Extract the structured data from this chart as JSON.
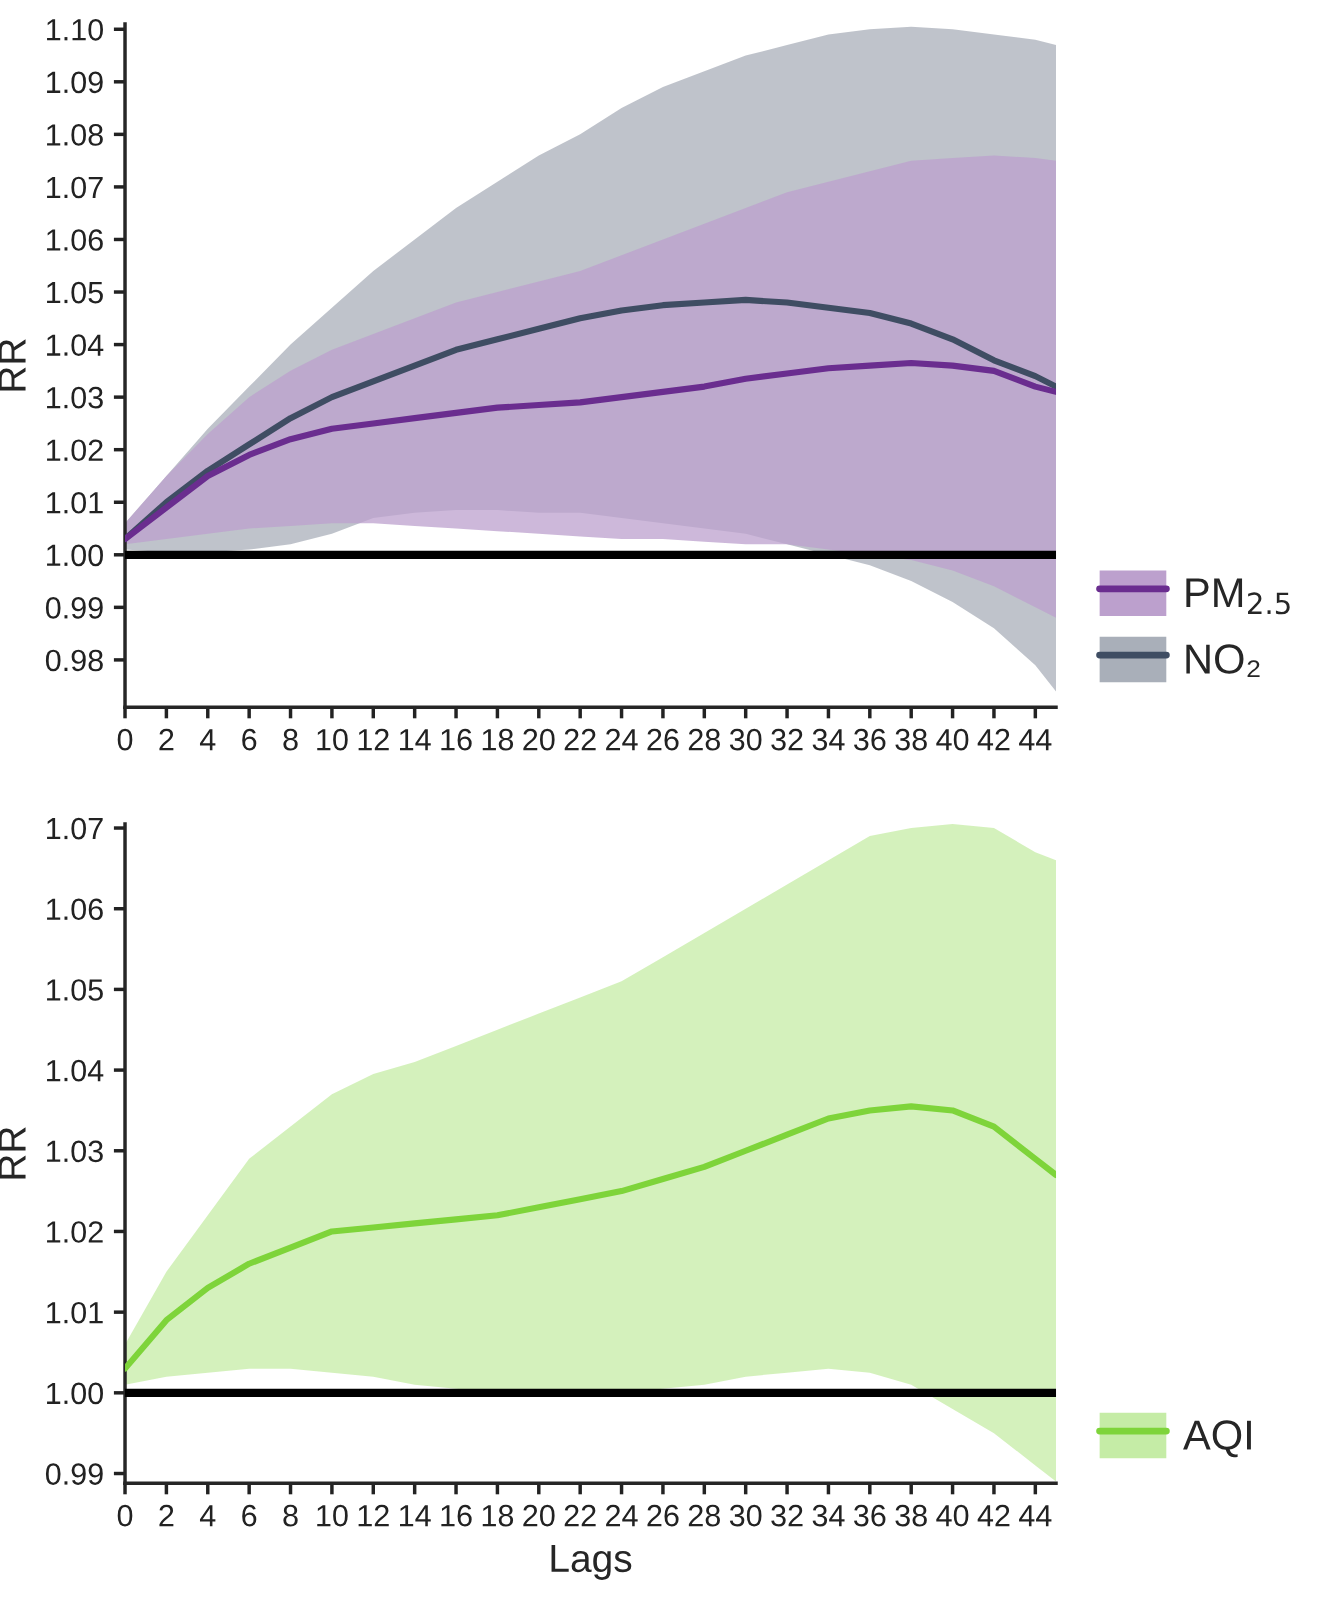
{
  "chart_data": [
    {
      "type": "line",
      "ylabel": "RR",
      "x": [
        0,
        2,
        4,
        6,
        8,
        10,
        12,
        14,
        16,
        18,
        20,
        22,
        24,
        26,
        28,
        30,
        32,
        34,
        36,
        38,
        40,
        42,
        44,
        45
      ],
      "xlim": [
        0,
        45
      ],
      "xticks": [
        0,
        2,
        4,
        6,
        8,
        10,
        12,
        14,
        16,
        18,
        20,
        22,
        24,
        26,
        28,
        30,
        32,
        34,
        36,
        38,
        40,
        42,
        44
      ],
      "ylim": [
        0.971,
        1.101
      ],
      "yticks": [
        {
          "value": 0.98,
          "label": "0.98"
        },
        {
          "value": 0.99,
          "label": "0.99"
        },
        {
          "value": 1.0,
          "label": "1.00"
        },
        {
          "value": 1.01,
          "label": "1.01"
        },
        {
          "value": 1.02,
          "label": "1.02"
        },
        {
          "value": 1.03,
          "label": "1.03"
        },
        {
          "value": 1.04,
          "label": "1.04"
        },
        {
          "value": 1.05,
          "label": "1.05"
        },
        {
          "value": 1.06,
          "label": "1.06"
        },
        {
          "value": 1.07,
          "label": "1.07"
        },
        {
          "value": 1.08,
          "label": "1.08"
        },
        {
          "value": 1.09,
          "label": "1.09"
        },
        {
          "value": 1.1,
          "label": "1.10"
        }
      ],
      "grid": false,
      "legend": "right",
      "ref_lines": [
        {
          "axis": "y",
          "value": 1.0,
          "color": "#000000"
        }
      ],
      "series": [
        {
          "name": "NO₂",
          "color": "#3f4d63",
          "values": [
            1.003,
            1.01,
            1.016,
            1.021,
            1.026,
            1.03,
            1.033,
            1.036,
            1.039,
            1.041,
            1.043,
            1.045,
            1.0465,
            1.0475,
            1.048,
            1.0485,
            1.048,
            1.047,
            1.046,
            1.044,
            1.041,
            1.037,
            1.034,
            1.032
          ],
          "upper": [
            1.006,
            1.015,
            1.024,
            1.032,
            1.04,
            1.047,
            1.054,
            1.06,
            1.066,
            1.071,
            1.076,
            1.08,
            1.085,
            1.089,
            1.092,
            1.095,
            1.097,
            1.099,
            1.1,
            1.1005,
            1.1,
            1.099,
            1.098,
            1.097
          ],
          "lower": [
            1.001,
            1.0005,
            1.0005,
            1.001,
            1.002,
            1.004,
            1.007,
            1.008,
            1.0085,
            1.0085,
            1.008,
            1.008,
            1.007,
            1.006,
            1.005,
            1.004,
            1.002,
            1.0,
            0.998,
            0.995,
            0.991,
            0.986,
            0.979,
            0.974
          ]
        },
        {
          "name": "PM$_{2.5}$",
          "color": "#6a2d8f",
          "values": [
            1.003,
            1.009,
            1.015,
            1.019,
            1.022,
            1.024,
            1.025,
            1.026,
            1.027,
            1.028,
            1.0285,
            1.029,
            1.03,
            1.031,
            1.032,
            1.0335,
            1.0345,
            1.0355,
            1.036,
            1.0365,
            1.036,
            1.035,
            1.032,
            1.031
          ],
          "upper": [
            1.006,
            1.015,
            1.023,
            1.03,
            1.035,
            1.039,
            1.042,
            1.045,
            1.048,
            1.05,
            1.052,
            1.054,
            1.057,
            1.06,
            1.063,
            1.066,
            1.069,
            1.071,
            1.073,
            1.075,
            1.0755,
            1.076,
            1.0755,
            1.075
          ],
          "lower": [
            1.002,
            1.003,
            1.004,
            1.005,
            1.0055,
            1.006,
            1.006,
            1.0055,
            1.005,
            1.0045,
            1.004,
            1.0035,
            1.003,
            1.003,
            1.0025,
            1.002,
            1.002,
            1.001,
            1.0,
            0.999,
            0.997,
            0.994,
            0.99,
            0.988
          ]
        }
      ]
    },
    {
      "type": "line",
      "ylabel": "RR",
      "xlabel": "Lags",
      "x": [
        0,
        2,
        4,
        6,
        8,
        10,
        12,
        14,
        16,
        18,
        20,
        22,
        24,
        26,
        28,
        30,
        32,
        34,
        36,
        38,
        40,
        42,
        44,
        45
      ],
      "xlim": [
        0,
        45
      ],
      "xticks": [
        0,
        2,
        4,
        6,
        8,
        10,
        12,
        14,
        16,
        18,
        20,
        22,
        24,
        26,
        28,
        30,
        32,
        34,
        36,
        38,
        40,
        42,
        44
      ],
      "ylim": [
        0.9888,
        1.0705
      ],
      "yticks": [
        {
          "value": 0.99,
          "label": "0.99"
        },
        {
          "value": 1.0,
          "label": "1.00"
        },
        {
          "value": 1.01,
          "label": "1.01"
        },
        {
          "value": 1.02,
          "label": "1.02"
        },
        {
          "value": 1.03,
          "label": "1.03"
        },
        {
          "value": 1.04,
          "label": "1.04"
        },
        {
          "value": 1.05,
          "label": "1.05"
        },
        {
          "value": 1.06,
          "label": "1.06"
        },
        {
          "value": 1.07,
          "label": "1.07"
        }
      ],
      "grid": false,
      "legend": "right",
      "ref_lines": [
        {
          "axis": "y",
          "value": 1.0,
          "color": "#000000"
        }
      ],
      "series": [
        {
          "name": "AQI",
          "color": "#7ed43a",
          "values": [
            1.003,
            1.009,
            1.013,
            1.016,
            1.018,
            1.02,
            1.0205,
            1.021,
            1.0215,
            1.022,
            1.023,
            1.024,
            1.025,
            1.0265,
            1.028,
            1.03,
            1.032,
            1.034,
            1.035,
            1.0355,
            1.035,
            1.033,
            1.029,
            1.027
          ],
          "upper": [
            1.006,
            1.015,
            1.022,
            1.029,
            1.033,
            1.037,
            1.0395,
            1.041,
            1.043,
            1.045,
            1.047,
            1.049,
            1.051,
            1.054,
            1.057,
            1.06,
            1.063,
            1.066,
            1.069,
            1.07,
            1.0705,
            1.07,
            1.067,
            1.066
          ],
          "lower": [
            1.001,
            1.002,
            1.0025,
            1.003,
            1.003,
            1.0025,
            1.002,
            1.001,
            1.0005,
            1.0,
            1.0,
            1.0,
            1.0,
            1.0005,
            1.001,
            1.002,
            1.0025,
            1.003,
            1.0025,
            1.001,
            0.998,
            0.995,
            0.991,
            0.989
          ]
        }
      ]
    }
  ]
}
